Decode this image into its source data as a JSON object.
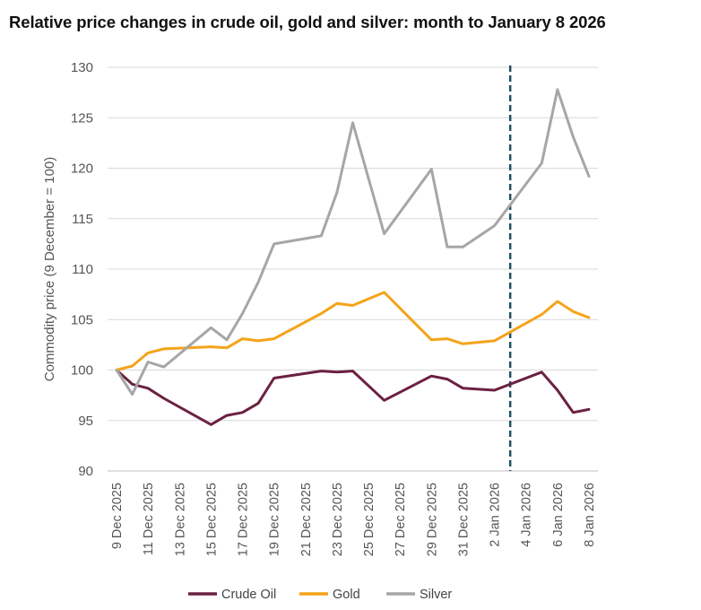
{
  "chart_data": {
    "type": "line",
    "title": "Relative price changes in crude oil, gold and silver: month to January 8 2026",
    "ylabel": "Commodity price (9 December = 100)",
    "xlabel": "",
    "ylim": [
      90,
      130
    ],
    "yticks": [
      90,
      95,
      100,
      105,
      110,
      115,
      120,
      125,
      130
    ],
    "grid": true,
    "legend_position": "bottom",
    "x": [
      "2025-12-09",
      "2025-12-10",
      "2025-12-11",
      "2025-12-12",
      "2025-12-15",
      "2025-12-16",
      "2025-12-17",
      "2025-12-18",
      "2025-12-19",
      "2025-12-22",
      "2025-12-23",
      "2025-12-24",
      "2025-12-26",
      "2025-12-29",
      "2025-12-30",
      "2025-12-31",
      "2026-01-02",
      "2026-01-05",
      "2026-01-06",
      "2026-01-07",
      "2026-01-08"
    ],
    "x_tick_labels": [
      "9 Dec 2025",
      "11 Dec 2025",
      "13 Dec 2025",
      "15 Dec 2025",
      "17 Dec 2025",
      "19 Dec 2025",
      "21 Dec 2025",
      "23 Dec 2025",
      "25 Dec 2025",
      "27 Dec 2025",
      "29 Dec 2025",
      "31 Dec 2025",
      "2 Jan 2026",
      "4 Jan 2026",
      "6 Jan 2026",
      "8 Jan 2026"
    ],
    "x_tick_dates": [
      "2025-12-09",
      "2025-12-11",
      "2025-12-13",
      "2025-12-15",
      "2025-12-17",
      "2025-12-19",
      "2025-12-21",
      "2025-12-23",
      "2025-12-25",
      "2025-12-27",
      "2025-12-29",
      "2025-12-31",
      "2026-01-02",
      "2026-01-04",
      "2026-01-06",
      "2026-01-08"
    ],
    "reference_line_date": "2026-01-03",
    "reference_line_color": "#1f4e5f",
    "series": [
      {
        "name": "Crude Oil",
        "color": "#6b2142",
        "values": [
          100.0,
          98.6,
          98.2,
          97.2,
          94.6,
          95.5,
          95.8,
          96.7,
          99.2,
          99.9,
          99.8,
          99.9,
          97.0,
          99.4,
          99.1,
          98.2,
          98.0,
          99.8,
          98.0,
          95.8,
          96.1
        ]
      },
      {
        "name": "Gold",
        "color": "#f5a31a",
        "values": [
          100.0,
          100.4,
          101.7,
          102.1,
          102.3,
          102.2,
          103.1,
          102.9,
          103.1,
          105.6,
          106.6,
          106.4,
          107.7,
          103.0,
          103.1,
          102.6,
          102.9,
          105.5,
          106.8,
          105.8,
          105.2
        ]
      },
      {
        "name": "Silver",
        "color": "#a6a6a6",
        "values": [
          100.0,
          97.6,
          100.8,
          100.3,
          104.2,
          103.0,
          105.6,
          108.7,
          112.5,
          113.3,
          117.6,
          124.5,
          113.5,
          119.9,
          112.2,
          112.2,
          114.3,
          120.5,
          127.8,
          123.1,
          119.2
        ]
      }
    ]
  }
}
